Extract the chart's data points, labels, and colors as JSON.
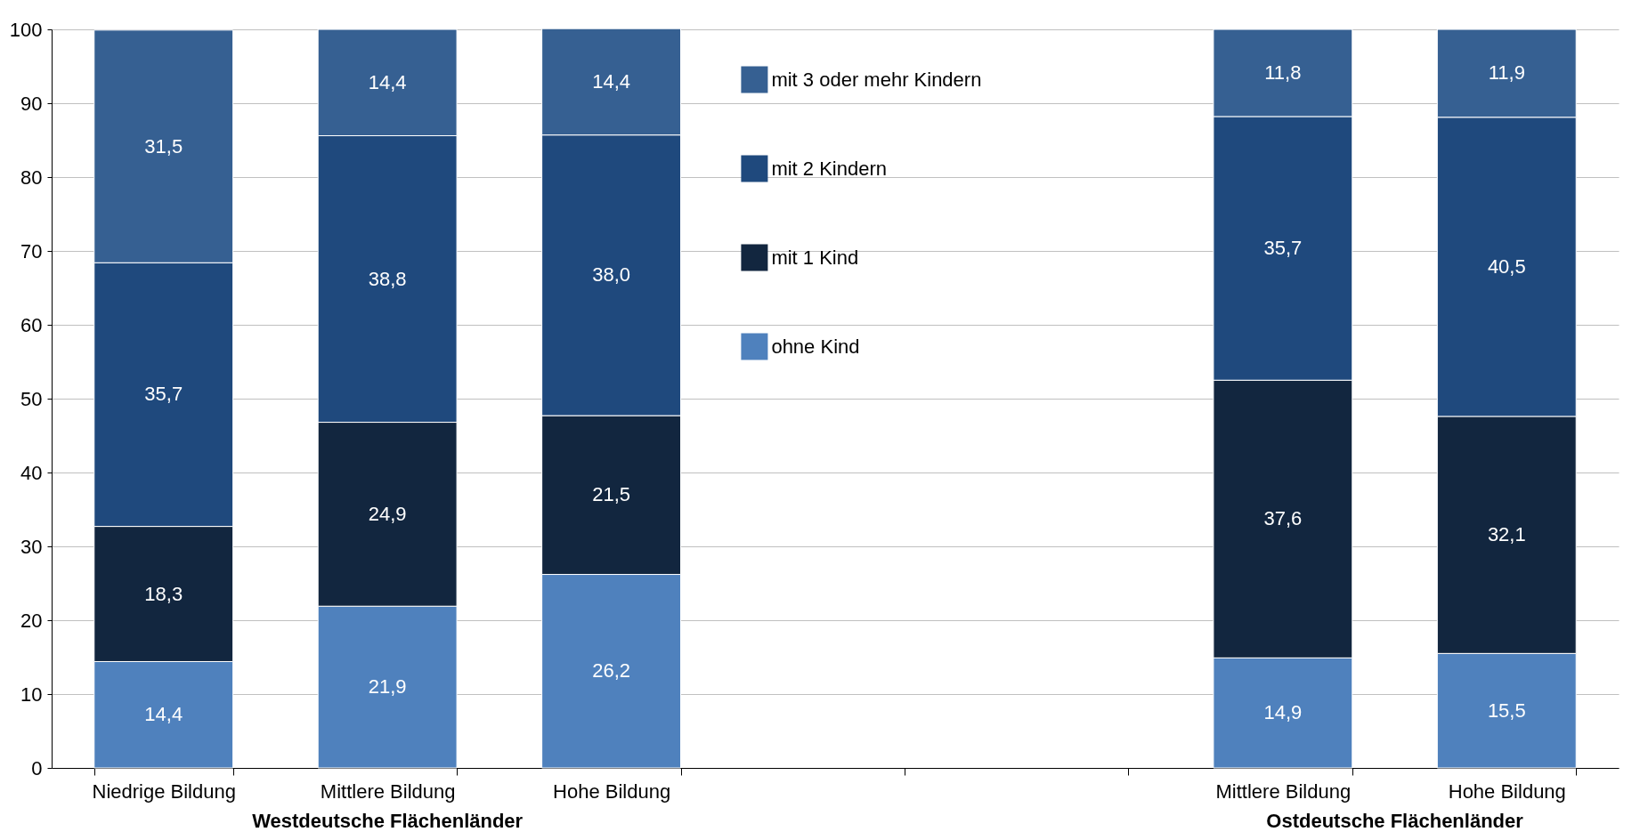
{
  "chart_data": {
    "type": "bar",
    "stacked": true,
    "categories": [
      "Niedrige Bildung",
      "Mittlere Bildung",
      "Hohe Bildung",
      null,
      null,
      "Mittlere Bildung",
      "Hohe Bildung"
    ],
    "series": [
      {
        "name": "ohne Kind",
        "color": "#4f81bd",
        "values": [
          14.4,
          21.9,
          26.2,
          null,
          null,
          14.9,
          15.5
        ],
        "value_labels": [
          "14,4",
          "21,9",
          "26,2",
          null,
          null,
          "14,9",
          "15,5"
        ]
      },
      {
        "name": "mit 1 Kind",
        "color": "#12263f",
        "values": [
          18.3,
          24.9,
          21.5,
          null,
          null,
          37.6,
          32.1
        ],
        "value_labels": [
          "18,3",
          "24,9",
          "21,5",
          null,
          null,
          "37,6",
          "32,1"
        ]
      },
      {
        "name": "mit 2 Kindern",
        "color": "#1f497d",
        "values": [
          35.7,
          38.8,
          38.0,
          null,
          null,
          35.7,
          40.5
        ],
        "value_labels": [
          "35,7",
          "38,8",
          "38,0",
          null,
          null,
          "35,7",
          "40,5"
        ]
      },
      {
        "name": "mit 3 oder mehr Kindern",
        "color": "#366092",
        "values": [
          31.5,
          14.4,
          14.4,
          null,
          null,
          11.8,
          11.9
        ],
        "value_labels": [
          "31,5",
          "14,4",
          "14,4",
          null,
          null,
          "11,8",
          "11,9"
        ]
      }
    ],
    "ylim": [
      0,
      100
    ],
    "yticks": [
      0,
      10,
      20,
      30,
      40,
      50,
      60,
      70,
      80,
      90,
      100
    ],
    "grid": "y",
    "legend": "center",
    "annotations": [
      "Westdeutsche Flächenländer",
      "Ostdeutsche Flächenländer"
    ]
  }
}
